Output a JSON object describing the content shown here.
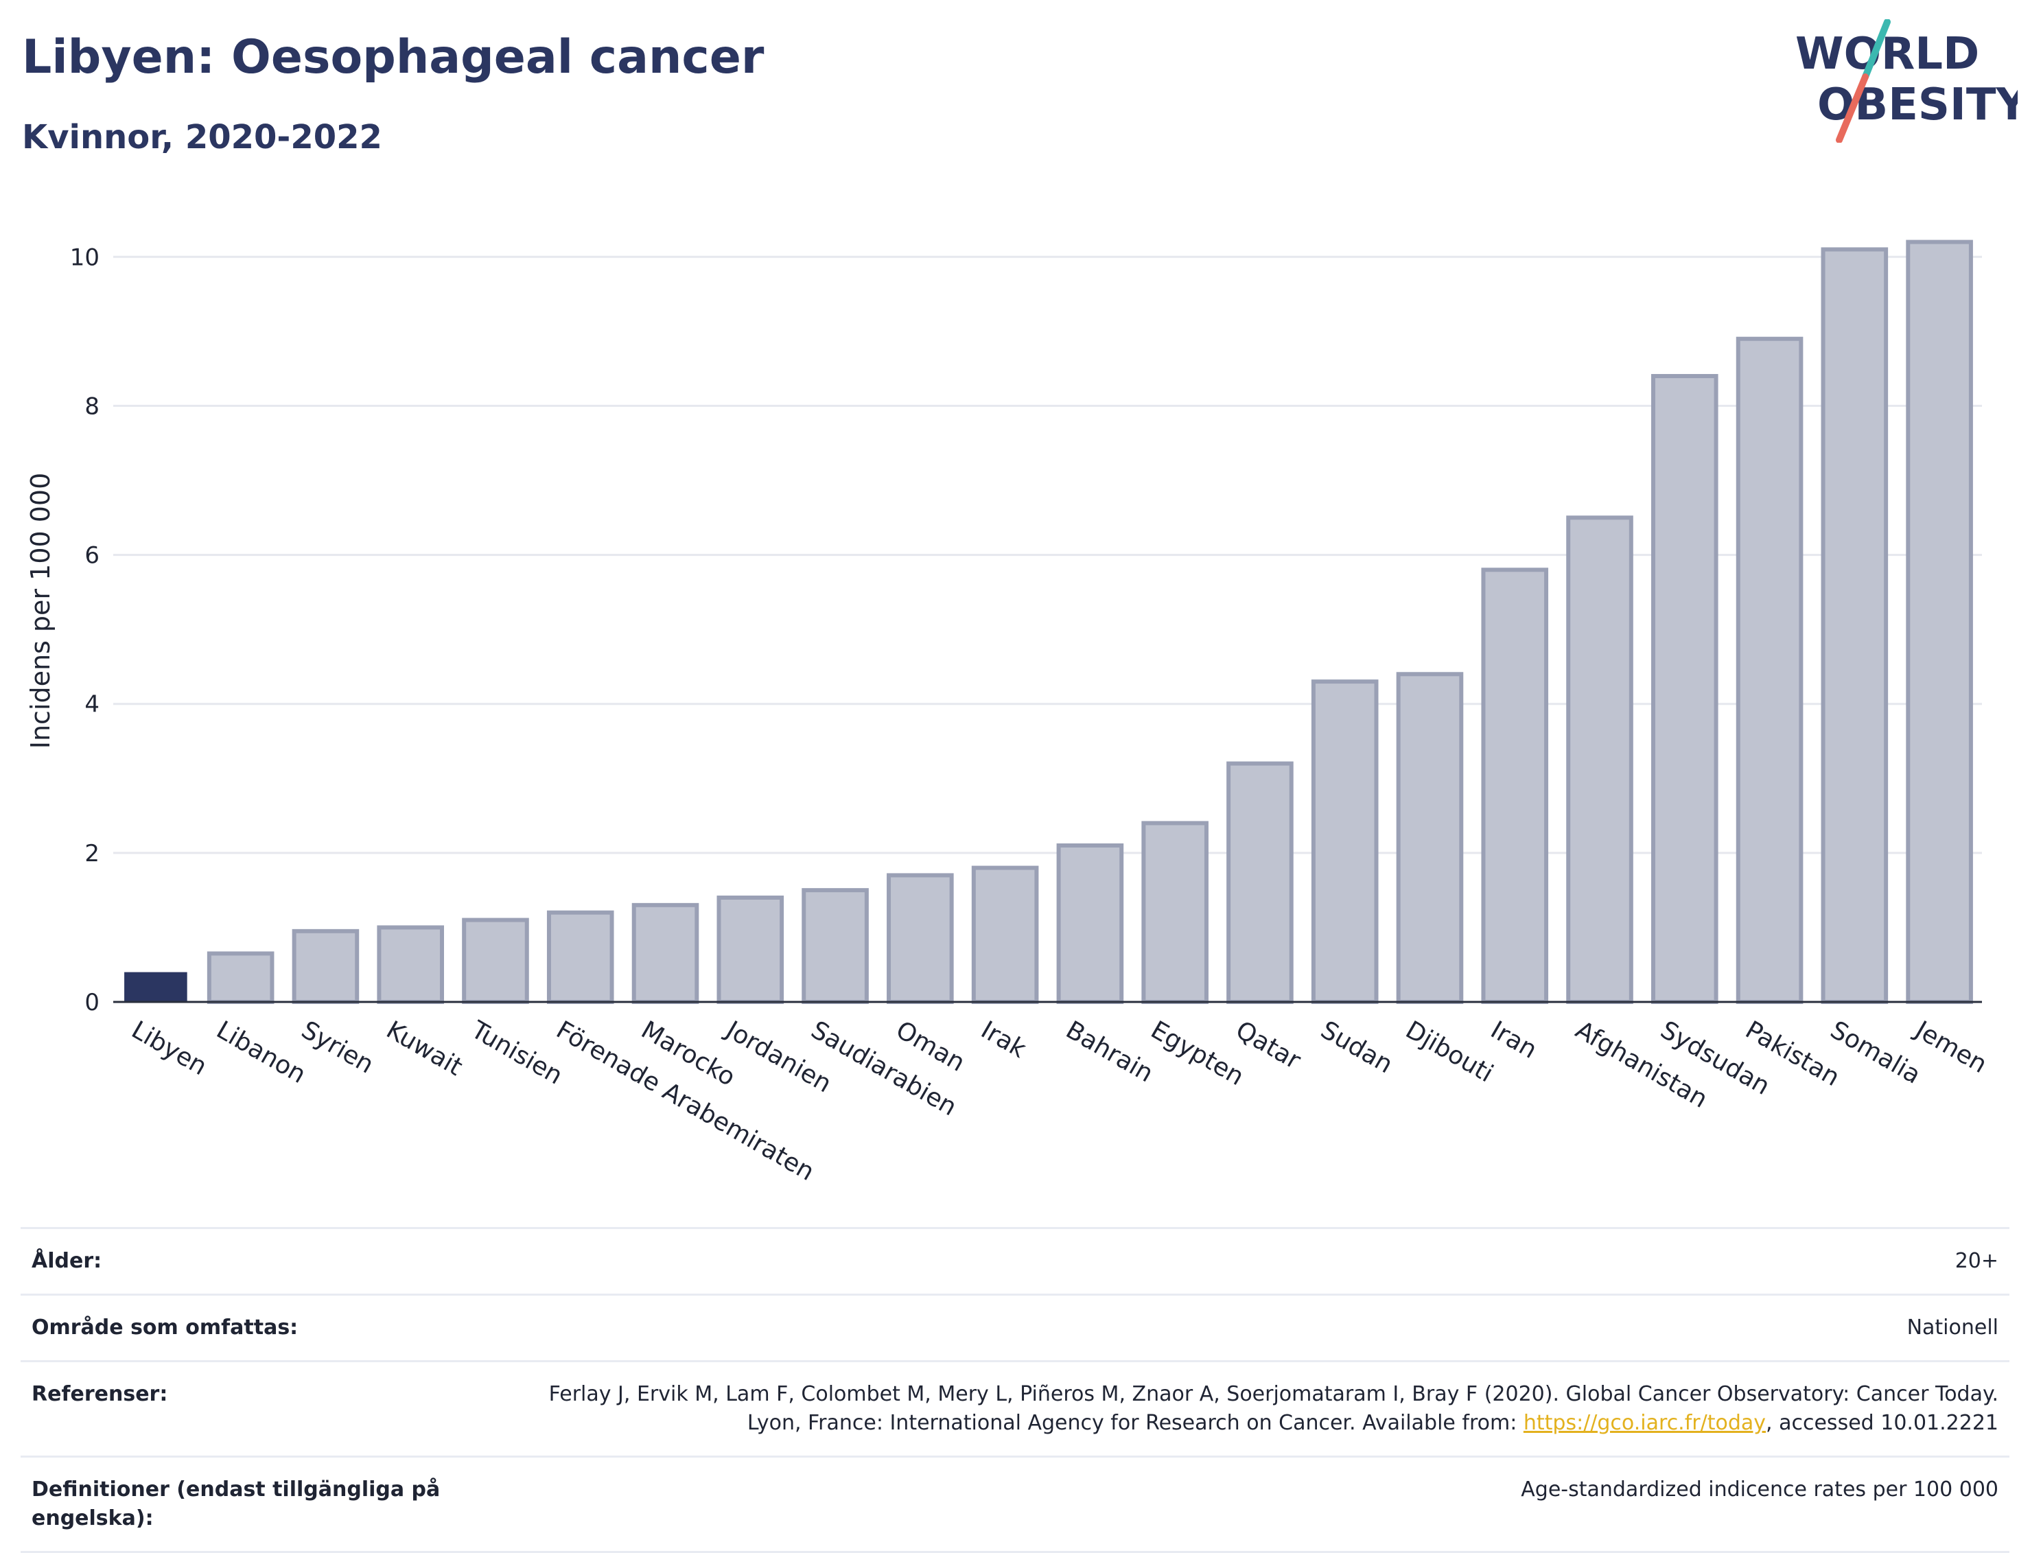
{
  "header": {
    "title": "Libyen: Oesophageal cancer",
    "subtitle": "Kvinnor, 2020-2022"
  },
  "logo": {
    "line1": "WORLD",
    "line2": "OBESITY",
    "slash_colors": [
      "#3cb8b0",
      "#e86a5c"
    ],
    "text_color": "#2b3661"
  },
  "chart_data": {
    "type": "bar",
    "ylabel": "Incidens per 100 000",
    "xlabel": "",
    "ylim": [
      0,
      10.5
    ],
    "yticks": [
      0,
      2,
      4,
      6,
      8,
      10
    ],
    "grid": true,
    "highlight_color": "#2b3661",
    "bar_color": "#bfc3d0",
    "bar_stroke": "#9aa0b5",
    "categories": [
      "Libyen",
      "Libanon",
      "Syrien",
      "Kuwait",
      "Tunisien",
      "Förenade Arabemiraten",
      "Marocko",
      "Jordanien",
      "Saudiarabien",
      "Oman",
      "Irak",
      "Bahrain",
      "Egypten",
      "Qatar",
      "Sudan",
      "Djibouti",
      "Iran",
      "Afghanistan",
      "Sydsudan",
      "Pakistan",
      "Somalia",
      "Jemen"
    ],
    "values": [
      0.4,
      0.65,
      0.95,
      1.0,
      1.1,
      1.2,
      1.3,
      1.4,
      1.5,
      1.7,
      1.8,
      2.1,
      2.4,
      3.2,
      4.3,
      4.4,
      5.8,
      6.5,
      8.4,
      8.9,
      10.1,
      10.2
    ],
    "highlight_index": 0
  },
  "info": {
    "rows": [
      {
        "label": "Ålder:",
        "value": "20+"
      },
      {
        "label": "Område som omfattas:",
        "value": "Nationell"
      },
      {
        "label": "Referenser:",
        "value_pre": "Ferlay J, Ervik M, Lam F, Colombet M, Mery L, Piñeros M, Znaor A, Soerjomataram I, Bray F (2020). Global Cancer Observatory: Cancer Today. Lyon, France: International Agency for Research on Cancer. Available from: ",
        "link": "https://gco.iarc.fr/today",
        "value_post": ", accessed 10.01.2221"
      },
      {
        "label": "Definitioner (endast tillgängliga på engelska):",
        "value": "Age-standardized indicence rates per 100 000"
      }
    ]
  }
}
